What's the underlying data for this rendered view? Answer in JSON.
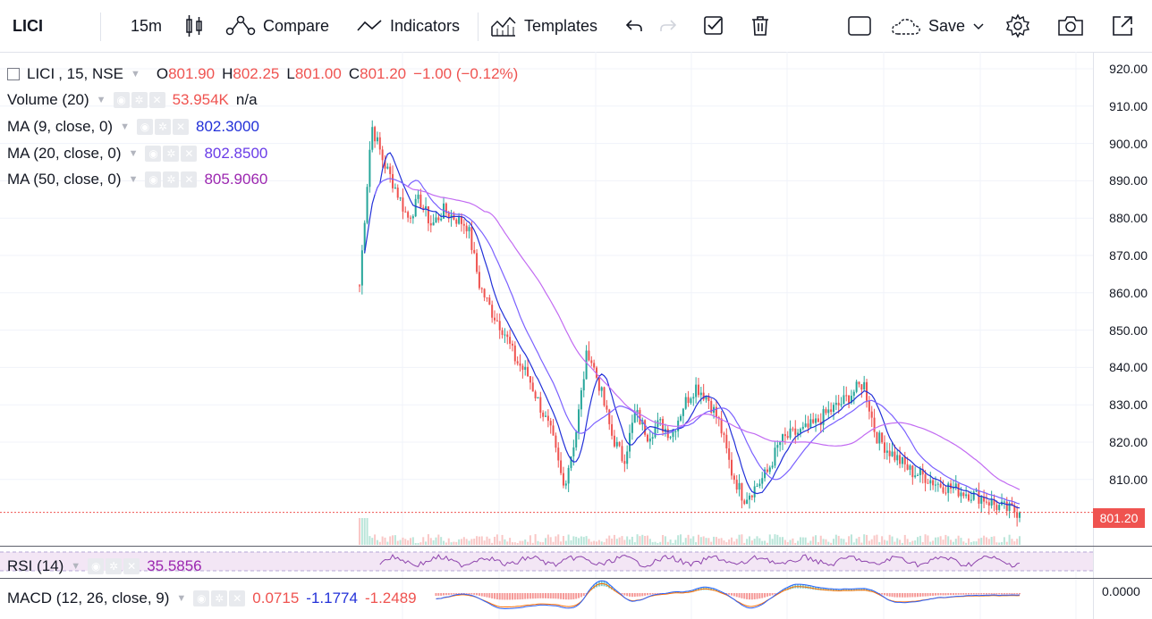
{
  "toolbar": {
    "symbol": "LICI",
    "interval": "15m",
    "compare_label": "Compare",
    "indicators_label": "Indicators",
    "templates_label": "Templates",
    "save_label": "Save"
  },
  "legend": {
    "series_name": "LICI",
    "series_meta": ", 15, NSE",
    "o_label": "O",
    "o_value": "801.90",
    "h_label": "H",
    "h_value": "802.25",
    "l_label": "L",
    "l_value": "801.00",
    "c_label": "C",
    "c_value": "801.20",
    "change": "−1.00 (−0.12%)",
    "volume_label": "Volume (20)",
    "volume_value": "53.954K",
    "volume_extra": "n/a",
    "ma9_label": "MA (9, close, 0)",
    "ma9_value": "802.3000",
    "ma20_label": "MA (20, close, 0)",
    "ma20_value": "802.8500",
    "ma50_label": "MA (50, close, 0)",
    "ma50_value": "805.9060"
  },
  "price_axis": {
    "ticks": [
      "920.00",
      "910.00",
      "900.00",
      "890.00",
      "880.00",
      "870.00",
      "860.00",
      "850.00",
      "840.00",
      "830.00",
      "820.00",
      "810.00"
    ],
    "last_price": "801.20",
    "macd_zero": "0.0000"
  },
  "rsi": {
    "label": "RSI (14)",
    "value": "35.5856"
  },
  "macd": {
    "label": "MACD (12, 26, close, 9)",
    "v1": "0.0715",
    "v2": "-1.1774",
    "v3": "-1.2489"
  },
  "colors": {
    "up": "#26a69a",
    "down": "#ef5350",
    "ma9": "#2230d8",
    "ma20": "#7b61ff",
    "ma50": "#c26bf2",
    "rsi": "#8e44ad",
    "macd": "#2962ff",
    "signal": "#ff6d00"
  },
  "chart_data": {
    "type": "candlestick",
    "ylim": [
      800,
      922
    ],
    "close_path": [
      862,
      905,
      895,
      888,
      880,
      885,
      878,
      882,
      880,
      878,
      862,
      855,
      850,
      842,
      838,
      830,
      822,
      808,
      822,
      845,
      835,
      822,
      815,
      828,
      822,
      825,
      822,
      830,
      835,
      832,
      825,
      812,
      805,
      808,
      812,
      820,
      822,
      823,
      825,
      828,
      830,
      833,
      836,
      822,
      818,
      815,
      812,
      811,
      809,
      808,
      807,
      806,
      805,
      803,
      802,
      801.2
    ],
    "ma50_path": [
      880,
      875,
      868,
      860,
      852,
      845,
      838,
      830,
      823,
      818,
      815,
      812,
      818,
      825,
      824,
      820,
      815,
      812,
      808,
      805
    ],
    "last_close": 801.2
  }
}
